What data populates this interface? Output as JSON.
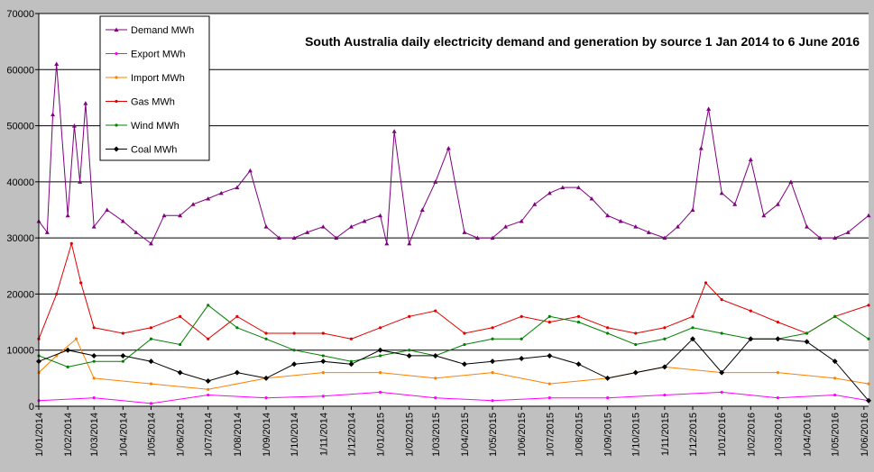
{
  "chart_data": {
    "type": "line",
    "title": "South Australia daily electricity demand and generation by source 1 Jan 2014 to 6 June 2016",
    "xlabel": "",
    "ylabel": "",
    "x_start": "2014-01-01",
    "x_end": "2016-06-06",
    "x_tick_labels": [
      "1/01/2014",
      "1/02/2014",
      "1/03/2014",
      "1/04/2014",
      "1/05/2014",
      "1/06/2014",
      "1/07/2014",
      "1/08/2014",
      "1/09/2014",
      "1/10/2014",
      "1/11/2014",
      "1/12/2014",
      "1/01/2015",
      "1/02/2015",
      "1/03/2015",
      "1/04/2015",
      "1/05/2015",
      "1/06/2015",
      "1/07/2015",
      "1/08/2015",
      "1/09/2015",
      "1/10/2015",
      "1/11/2015",
      "1/12/2015",
      "1/01/2016",
      "1/02/2016",
      "1/03/2016",
      "1/04/2016",
      "1/05/2016",
      "1/06/2016"
    ],
    "x_tick_dates": [
      "2014-01-01",
      "2014-02-01",
      "2014-03-01",
      "2014-04-01",
      "2014-05-01",
      "2014-06-01",
      "2014-07-01",
      "2014-08-01",
      "2014-09-01",
      "2014-10-01",
      "2014-11-01",
      "2014-12-01",
      "2015-01-01",
      "2015-02-01",
      "2015-03-01",
      "2015-04-01",
      "2015-05-01",
      "2015-06-01",
      "2015-07-01",
      "2015-08-01",
      "2015-09-01",
      "2015-10-01",
      "2015-11-01",
      "2015-12-01",
      "2016-01-01",
      "2016-02-01",
      "2016-03-01",
      "2016-04-01",
      "2016-05-01",
      "2016-06-01"
    ],
    "y_ticks": [
      0,
      10000,
      20000,
      30000,
      40000,
      50000,
      60000,
      70000
    ],
    "ylim": [
      0,
      70000
    ],
    "grid": {
      "horizontal": true,
      "vertical": false
    },
    "legend_position": "top-left",
    "plot_background": "#ffffff",
    "series": [
      {
        "name": "Demand MWh",
        "color": "#800080",
        "marker": "triangle",
        "x": [
          "2014-01-01",
          "2014-01-10",
          "2014-01-16",
          "2014-01-20",
          "2014-02-01",
          "2014-02-08",
          "2014-02-14",
          "2014-02-20",
          "2014-03-01",
          "2014-03-15",
          "2014-04-01",
          "2014-04-15",
          "2014-05-01",
          "2014-05-15",
          "2014-06-01",
          "2014-06-15",
          "2014-07-01",
          "2014-07-15",
          "2014-08-01",
          "2014-08-15",
          "2014-09-01",
          "2014-09-15",
          "2014-10-01",
          "2014-10-15",
          "2014-11-01",
          "2014-11-15",
          "2014-12-01",
          "2014-12-15",
          "2015-01-01",
          "2015-01-08",
          "2015-01-16",
          "2015-02-01",
          "2015-02-15",
          "2015-03-01",
          "2015-03-15",
          "2015-04-01",
          "2015-04-15",
          "2015-05-01",
          "2015-05-15",
          "2015-06-01",
          "2015-06-15",
          "2015-07-01",
          "2015-07-15",
          "2015-08-01",
          "2015-08-15",
          "2015-09-01",
          "2015-09-15",
          "2015-10-01",
          "2015-10-15",
          "2015-11-01",
          "2015-11-15",
          "2015-12-01",
          "2015-12-10",
          "2015-12-18",
          "2016-01-01",
          "2016-01-15",
          "2016-02-01",
          "2016-02-15",
          "2016-03-01",
          "2016-03-15",
          "2016-04-01",
          "2016-04-15",
          "2016-05-01",
          "2016-05-15",
          "2016-06-06"
        ],
        "values": [
          33000,
          31000,
          52000,
          61000,
          34000,
          50000,
          40000,
          54000,
          32000,
          35000,
          33000,
          31000,
          29000,
          34000,
          34000,
          36000,
          37000,
          38000,
          39000,
          42000,
          32000,
          30000,
          30000,
          31000,
          32000,
          30000,
          32000,
          33000,
          34000,
          29000,
          49000,
          29000,
          35000,
          40000,
          46000,
          31000,
          30000,
          30000,
          32000,
          33000,
          36000,
          38000,
          39000,
          39000,
          37000,
          34000,
          33000,
          32000,
          31000,
          30000,
          32000,
          35000,
          46000,
          53000,
          38000,
          36000,
          44000,
          34000,
          36000,
          40000,
          32000,
          30000,
          30000,
          31000,
          34000
        ]
      },
      {
        "name": "Export MWh",
        "color": "#ff00ff",
        "marker": "dot",
        "x": [
          "2014-01-01",
          "2014-03-01",
          "2014-05-01",
          "2014-07-01",
          "2014-09-01",
          "2014-11-01",
          "2015-01-01",
          "2015-03-01",
          "2015-05-01",
          "2015-07-01",
          "2015-09-01",
          "2015-11-01",
          "2016-01-01",
          "2016-03-01",
          "2016-05-01",
          "2016-06-06"
        ],
        "values": [
          1000,
          1500,
          500,
          2000,
          1500,
          1800,
          2500,
          1500,
          1000,
          1500,
          1500,
          2000,
          2500,
          1500,
          2000,
          1000
        ]
      },
      {
        "name": "Import MWh",
        "color": "#ff8000",
        "marker": "dot",
        "x": [
          "2014-01-01",
          "2014-01-20",
          "2014-02-10",
          "2014-03-01",
          "2014-05-01",
          "2014-07-01",
          "2014-09-01",
          "2014-11-01",
          "2015-01-01",
          "2015-03-01",
          "2015-05-01",
          "2015-07-01",
          "2015-09-01",
          "2015-11-01",
          "2016-01-01",
          "2016-03-01",
          "2016-05-01",
          "2016-06-06"
        ],
        "values": [
          6000,
          9000,
          12000,
          5000,
          4000,
          3000,
          5000,
          6000,
          6000,
          5000,
          6000,
          4000,
          5000,
          7000,
          6000,
          6000,
          5000,
          4000
        ]
      },
      {
        "name": "Gas MWh",
        "color": "#e00000",
        "marker": "dot",
        "x": [
          "2014-01-01",
          "2014-01-20",
          "2014-02-05",
          "2014-02-15",
          "2014-03-01",
          "2014-04-01",
          "2014-05-01",
          "2014-06-01",
          "2014-07-01",
          "2014-08-01",
          "2014-09-01",
          "2014-10-01",
          "2014-11-01",
          "2014-12-01",
          "2015-01-01",
          "2015-02-01",
          "2015-03-01",
          "2015-04-01",
          "2015-05-01",
          "2015-06-01",
          "2015-07-01",
          "2015-08-01",
          "2015-09-01",
          "2015-10-01",
          "2015-11-01",
          "2015-12-01",
          "2015-12-15",
          "2016-01-01",
          "2016-02-01",
          "2016-03-01",
          "2016-04-01",
          "2016-05-01",
          "2016-06-06"
        ],
        "values": [
          12000,
          20000,
          29000,
          22000,
          14000,
          13000,
          14000,
          16000,
          12000,
          16000,
          13000,
          13000,
          13000,
          12000,
          14000,
          16000,
          17000,
          13000,
          14000,
          16000,
          15000,
          16000,
          14000,
          13000,
          14000,
          16000,
          22000,
          19000,
          17000,
          15000,
          13000,
          16000,
          18000
        ]
      },
      {
        "name": "Wind MWh",
        "color": "#008000",
        "marker": "dot",
        "x": [
          "2014-01-01",
          "2014-02-01",
          "2014-03-01",
          "2014-04-01",
          "2014-05-01",
          "2014-06-01",
          "2014-07-01",
          "2014-08-01",
          "2014-09-01",
          "2014-10-01",
          "2014-11-01",
          "2014-12-01",
          "2015-01-01",
          "2015-02-01",
          "2015-03-01",
          "2015-04-01",
          "2015-05-01",
          "2015-06-01",
          "2015-07-01",
          "2015-08-01",
          "2015-09-01",
          "2015-10-01",
          "2015-11-01",
          "2015-12-01",
          "2016-01-01",
          "2016-02-01",
          "2016-03-01",
          "2016-04-01",
          "2016-05-01",
          "2016-06-06"
        ],
        "values": [
          9000,
          7000,
          8000,
          8000,
          12000,
          11000,
          18000,
          14000,
          12000,
          10000,
          9000,
          8000,
          9000,
          10000,
          9000,
          11000,
          12000,
          12000,
          16000,
          15000,
          13000,
          11000,
          12000,
          14000,
          13000,
          12000,
          12000,
          13000,
          16000,
          12000
        ]
      },
      {
        "name": "Coal MWh",
        "color": "#000000",
        "marker": "diamond",
        "x": [
          "2014-01-01",
          "2014-02-01",
          "2014-03-01",
          "2014-04-01",
          "2014-05-01",
          "2014-06-01",
          "2014-07-01",
          "2014-08-01",
          "2014-09-01",
          "2014-10-01",
          "2014-11-01",
          "2014-12-01",
          "2015-01-01",
          "2015-02-01",
          "2015-03-01",
          "2015-04-01",
          "2015-05-01",
          "2015-06-01",
          "2015-07-01",
          "2015-08-01",
          "2015-09-01",
          "2015-10-01",
          "2015-11-01",
          "2015-12-01",
          "2016-01-01",
          "2016-02-01",
          "2016-03-01",
          "2016-04-01",
          "2016-05-01",
          "2016-06-06"
        ],
        "values": [
          8000,
          10000,
          9000,
          9000,
          8000,
          6000,
          4500,
          6000,
          5000,
          7500,
          8000,
          7500,
          10000,
          9000,
          9000,
          7500,
          8000,
          8500,
          9000,
          7500,
          5000,
          6000,
          7000,
          12000,
          6000,
          12000,
          12000,
          11500,
          8000,
          1000
        ]
      }
    ]
  }
}
